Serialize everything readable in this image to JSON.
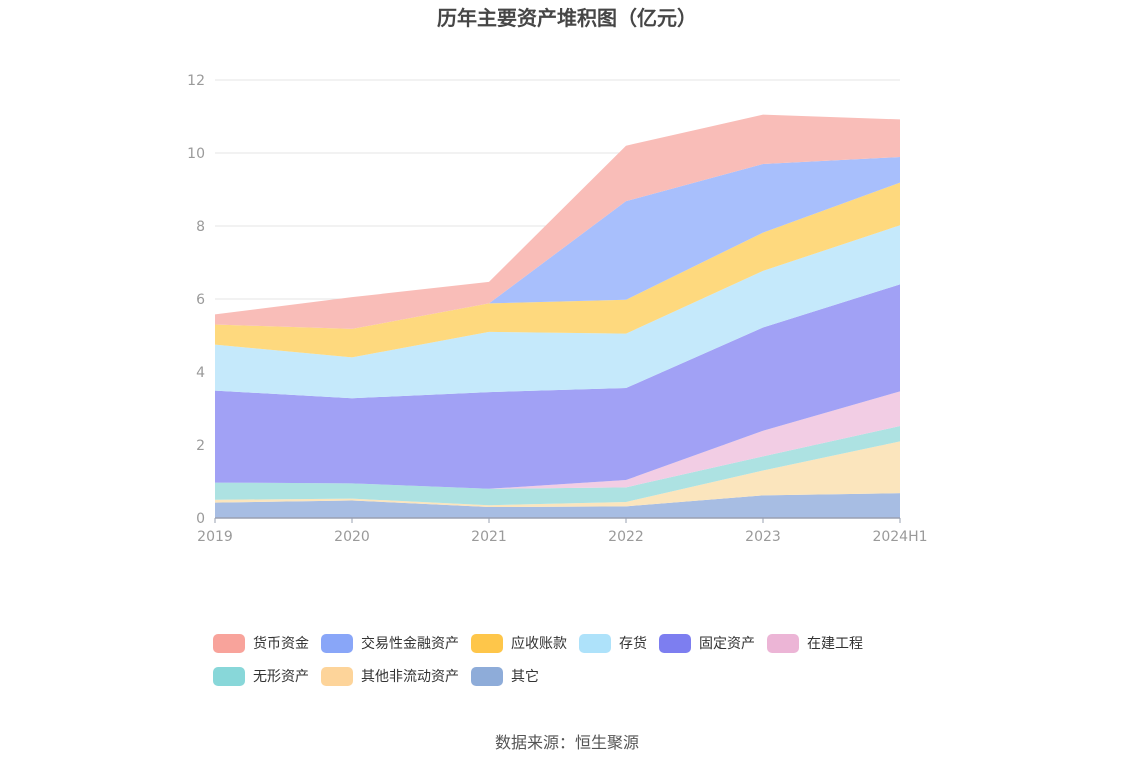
{
  "chart_data": {
    "type": "area",
    "stacked": true,
    "title": "历年主要资产堆积图（亿元）",
    "categories": [
      "2019",
      "2020",
      "2021",
      "2022",
      "2023",
      "2024H1"
    ],
    "ylim": [
      0,
      12
    ],
    "yticks": [
      0,
      2,
      4,
      6,
      8,
      10,
      12
    ],
    "grid": true,
    "legend_position": "bottom",
    "series": [
      {
        "name": "其它",
        "color": "#a7bde3",
        "legend_color": "#8eacd9",
        "values": [
          0.42,
          0.48,
          0.3,
          0.32,
          0.62,
          0.68
        ]
      },
      {
        "name": "其他非流动资产",
        "color": "#fbe5bd",
        "legend_color": "#fdd49a",
        "values": [
          0.08,
          0.05,
          0.05,
          0.12,
          0.68,
          1.42
        ]
      },
      {
        "name": "无形资产",
        "color": "#ade2e2",
        "legend_color": "#88d7d9",
        "values": [
          0.47,
          0.42,
          0.45,
          0.4,
          0.39,
          0.42
        ]
      },
      {
        "name": "在建工程",
        "color": "#f2cde4",
        "legend_color": "#ecb5d6",
        "values": [
          0.0,
          0.0,
          0.0,
          0.2,
          0.7,
          0.95
        ]
      },
      {
        "name": "固定资产",
        "color": "#a1a1f5",
        "legend_color": "#7d7ef0",
        "values": [
          2.52,
          2.33,
          2.65,
          2.52,
          2.83,
          2.93
        ]
      },
      {
        "name": "存货",
        "color": "#c5e9fb",
        "legend_color": "#aee2fa",
        "values": [
          1.26,
          1.12,
          1.65,
          1.49,
          1.55,
          1.62
        ]
      },
      {
        "name": "应收账款",
        "color": "#fed97e",
        "legend_color": "#fec64a",
        "values": [
          0.55,
          0.78,
          0.78,
          0.93,
          1.05,
          1.17
        ]
      },
      {
        "name": "交易性金融资产",
        "color": "#a8bffc",
        "legend_color": "#89a6f8",
        "values": [
          0.0,
          0.0,
          0.0,
          2.7,
          1.88,
          0.7
        ]
      },
      {
        "name": "货币资金",
        "color": "#f9bdb8",
        "legend_color": "#f8a39b",
        "values": [
          0.28,
          0.87,
          0.59,
          1.52,
          1.35,
          1.03
        ]
      }
    ],
    "legend_order": [
      "货币资金",
      "交易性金融资产",
      "应收账款",
      "存货",
      "固定资产",
      "在建工程",
      "无形资产",
      "其他非流动资产",
      "其它"
    ]
  },
  "source_text": "数据来源：恒生聚源"
}
